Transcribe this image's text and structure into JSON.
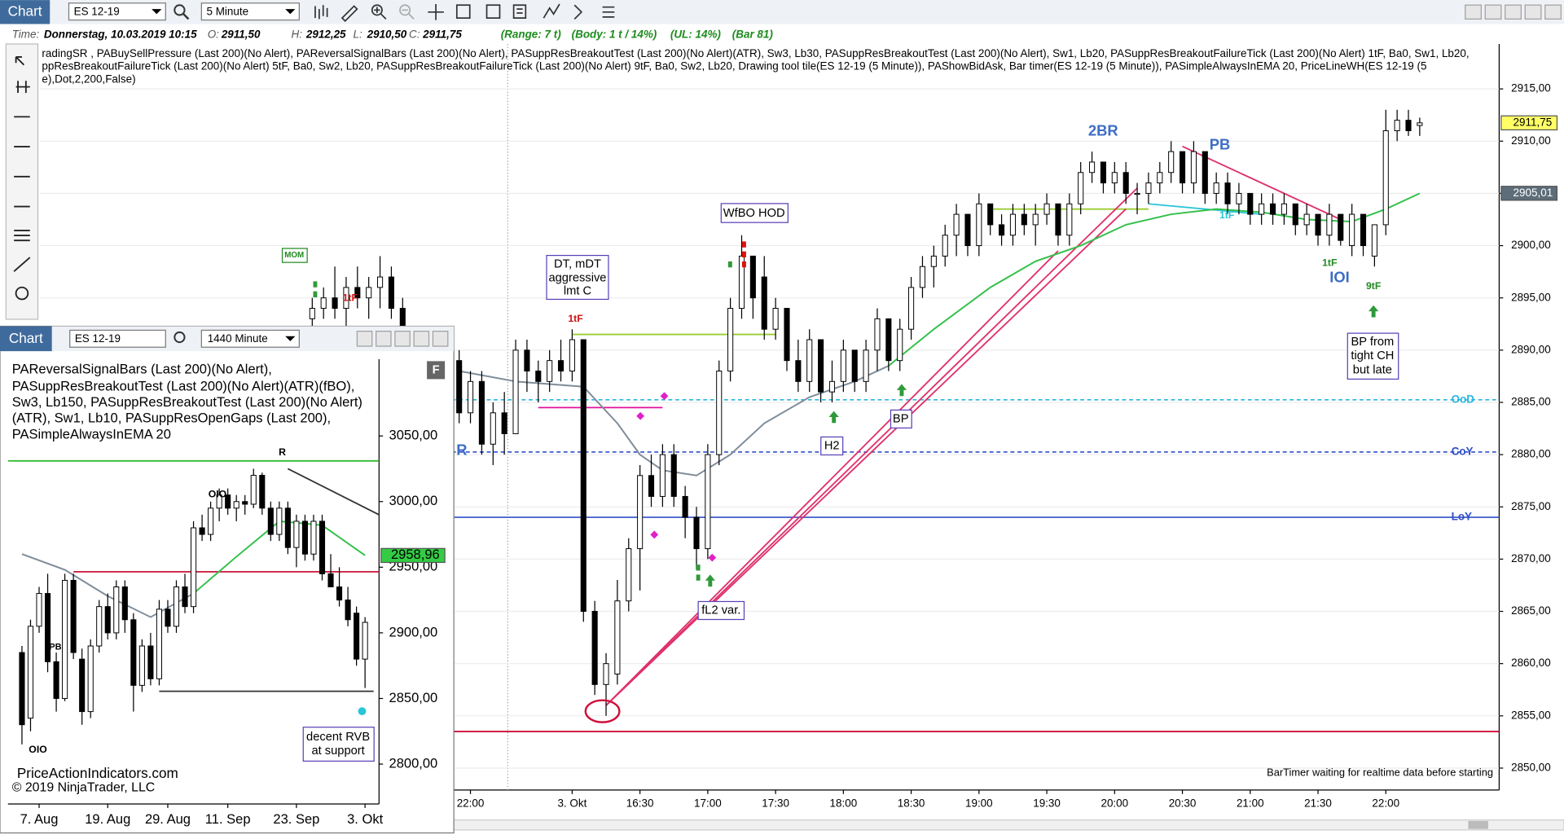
{
  "window": {
    "title": "Chart",
    "symbol": "ES 12-19",
    "interval": "5 Minute"
  },
  "status": {
    "time_label": "Time:",
    "time": "Donnerstag, 10.03.2019 10:15",
    "open_label": "O:",
    "open": "2911,50",
    "high_label": "H:",
    "high": "2912,25",
    "low_label": "L:",
    "low": "2910,50",
    "close_label": "C:",
    "close": "2911,75",
    "range": "(Range: 7 t)",
    "body": "(Body: 1 t / 14%)",
    "ul": "(UL: 14%)",
    "bar": "(Bar 81)"
  },
  "indicators": [
    "radingSR , PABuySellPressure (Last 200)(No Alert), PAReversalSignalBars (Last 200)(No Alert), PASuppResBreakoutTest (Last 200)(No Alert)(ATR),  Sw3,  Lb30, PASuppResBreakoutTest (Last 200)(No Alert),  Sw1,  Lb20, PASuppResBreakoutFailureTick (Last 200)(No Alert) 1tF,  Ba0,  Sw1,  Lb20,",
    "ppResBreakoutFailureTick (Last 200)(No Alert) 5tF,  Ba0,  Sw2,  Lb20, PASuppResBreakoutFailureTick (Last 200)(No Alert) 9tF,  Ba0,  Sw2,  Lb20, Drawing tool tile(ES 12-19 (5 Minute)), PAShowBidAsk, Bar timer(ES 12-19 (5 Minute)), PASimpleAlwaysInEMA    20, PriceLineWH(ES 12-19 (5",
    "e),Dot,2,200,False)"
  ],
  "annotations": [
    "DT, mDT",
    "aggressive",
    "lmt C",
    "WfBO HOD",
    "H2",
    "BP",
    "fL2 var.",
    "BP from",
    "tight CH",
    "but late",
    "2BR",
    "PB",
    "IOI",
    "1tF",
    "9tF",
    "1tF",
    "1tF",
    "MOM",
    "R",
    "1tF"
  ],
  "bar_timer": "BarTimer waiting for realtime data before starting",
  "inset": {
    "title": "Chart",
    "symbol": "ES 12-19",
    "interval": "1440 Minute",
    "button": "F",
    "indicators": [
      "PAReversalSignalBars (Last 200)(No Alert),",
      "PASuppResBreakoutTest (Last 200)(No Alert)(ATR)(fBO),",
      "Sw3,  Lb150, PASuppResBreakoutTest (Last 200)(No Alert)",
      "(ATR),  Sw1,  Lb10, PASuppResOpenGaps (Last 200),",
      "PASimpleAlwaysInEMA    20"
    ],
    "annotations": [
      "OIO",
      "R",
      "(PB",
      "OIO",
      "decent RVB",
      "at support"
    ],
    "footer": [
      "PriceActionIndicators.com",
      "© 2019 NinjaTrader, LLC"
    ]
  },
  "chart_data": [
    {
      "type": "candlestick",
      "up_color": "#ffffff",
      "down_color": "#000000",
      "open": [
        2893,
        2894,
        2895,
        2894,
        2896,
        2895,
        2896,
        2897,
        2894,
        2890,
        2889,
        2888,
        2889,
        2889,
        2884,
        2887,
        2881,
        2884,
        2882,
        2890,
        2888,
        2887,
        2889,
        2888,
        2891,
        2865,
        2858,
        2859,
        2866,
        2871,
        2878,
        2876,
        2880,
        2876,
        2874,
        2871,
        2880,
        2888,
        2894,
        2899,
        2897,
        2892,
        2894,
        2889,
        2887,
        2891,
        2886,
        2887,
        2890,
        2887,
        2890,
        2893,
        2889,
        2892,
        2896,
        2898,
        2899,
        2901,
        2903,
        2900,
        2904,
        2902,
        2901,
        2903,
        2902,
        2903,
        2904,
        2901,
        2904,
        2907,
        2908,
        2906,
        2907,
        2905,
        2905,
        2906,
        2907,
        2909,
        2906,
        2909,
        2905,
        2906,
        2904,
        2905,
        2903,
        2904,
        2903,
        2904,
        2902,
        2903,
        2901,
        2903,
        2900,
        2903,
        2899,
        2902,
        2911,
        2912,
        2911.5
      ],
      "high": [
        2895,
        2896,
        2898,
        2897,
        2898,
        2897,
        2899,
        2898,
        2895,
        2892,
        2891,
        2890,
        2890,
        2890,
        2888,
        2888,
        2885,
        2886,
        2891,
        2891,
        2889,
        2890,
        2891,
        2892,
        2891,
        2866,
        2861,
        2868,
        2872,
        2879,
        2880,
        2881,
        2881,
        2877,
        2875,
        2881,
        2889,
        2895,
        2901,
        2899,
        2899,
        2895,
        2894,
        2891,
        2892,
        2891,
        2889,
        2891,
        2890,
        2891,
        2894,
        2893,
        2893,
        2897,
        2899,
        2900,
        2902,
        2904,
        2903,
        2905,
        2904,
        2903,
        2904,
        2904,
        2904,
        2905,
        2904,
        2905,
        2908,
        2909,
        2908,
        2908,
        2908,
        2906,
        2907,
        2908,
        2910,
        2909,
        2910,
        2909,
        2907,
        2907,
        2906,
        2905,
        2905,
        2905,
        2905,
        2904,
        2904,
        2903,
        2904,
        2903,
        2904,
        2903,
        2902,
        2913,
        2913,
        2913,
        2912.25
      ],
      "low": [
        2891,
        2893,
        2893,
        2892,
        2894,
        2893,
        2894,
        2893,
        2889,
        2887,
        2886,
        2885,
        2884,
        2883,
        2883,
        2880,
        2879,
        2880,
        2882,
        2886,
        2885,
        2886,
        2887,
        2887,
        2864,
        2857,
        2855,
        2858,
        2865,
        2867,
        2875,
        2875,
        2875,
        2872,
        2869,
        2870,
        2879,
        2887,
        2893,
        2893,
        2891,
        2891,
        2888,
        2886,
        2886,
        2885,
        2885,
        2886,
        2886,
        2886,
        2888,
        2888,
        2888,
        2891,
        2895,
        2896,
        2898,
        2899,
        2899,
        2899,
        2901,
        2900,
        2900,
        2901,
        2900,
        2902,
        2900,
        2900,
        2903,
        2906,
        2905,
        2905,
        2904,
        2903,
        2904,
        2905,
        2906,
        2905,
        2905,
        2904,
        2904,
        2903,
        2903,
        2902,
        2902,
        2902,
        2902,
        2901,
        2901,
        2900,
        2900,
        2900,
        2899,
        2899,
        2898,
        2901,
        2910,
        2910.5,
        2910.5
      ],
      "close": [
        2894,
        2895,
        2894,
        2896,
        2895,
        2896,
        2897,
        2894,
        2890,
        2889,
        2888,
        2889,
        2885,
        2884,
        2887,
        2881,
        2884,
        2882,
        2890,
        2888,
        2887,
        2889,
        2888,
        2891,
        2865,
        2858,
        2860,
        2866,
        2871,
        2878,
        2876,
        2880,
        2876,
        2874,
        2871,
        2880,
        2888,
        2894,
        2899,
        2895,
        2892,
        2894,
        2889,
        2887,
        2891,
        2886,
        2887,
        2890,
        2887,
        2890,
        2893,
        2889,
        2892,
        2896,
        2898,
        2899,
        2901,
        2903,
        2900,
        2904,
        2902,
        2901,
        2903,
        2902,
        2903,
        2904,
        2901,
        2904,
        2907,
        2908,
        2906,
        2907,
        2905,
        2905,
        2906,
        2907,
        2909,
        2906,
        2909,
        2905,
        2906,
        2904,
        2905,
        2903,
        2904,
        2903,
        2904,
        2902,
        2903,
        2901,
        2903,
        2900.5,
        2903,
        2900,
        2902,
        2911,
        2912,
        2911,
        2911.75
      ],
      "xlim": [
        -24.1,
        105.03
      ],
      "xticks": [
        {
          "value": 14,
          "label": "22:00"
        },
        {
          "value": 23,
          "label": "3. Okt"
        },
        {
          "value": 29,
          "label": "16:30"
        },
        {
          "value": 35,
          "label": "17:00"
        },
        {
          "value": 41,
          "label": "17:30"
        },
        {
          "value": 47,
          "label": "18:00"
        },
        {
          "value": 53,
          "label": "18:30"
        },
        {
          "value": 59,
          "label": "19:00"
        },
        {
          "value": 65,
          "label": "19:30"
        },
        {
          "value": 71,
          "label": "20:00"
        },
        {
          "value": 77,
          "label": "20:30"
        },
        {
          "value": 83,
          "label": "21:00"
        },
        {
          "value": 89,
          "label": "21:30"
        },
        {
          "value": 95,
          "label": "22:00"
        }
      ],
      "ylim": [
        2847.9,
        2919.3
      ],
      "yticks": [
        {
          "value": 2850,
          "label": "2850,00"
        },
        {
          "value": 2855,
          "label": "2855,00"
        },
        {
          "value": 2860,
          "label": "2860,00"
        },
        {
          "value": 2865,
          "label": "2865,00"
        },
        {
          "value": 2870,
          "label": "2870,00"
        },
        {
          "value": 2875,
          "label": "2875,00"
        },
        {
          "value": 2880,
          "label": "2880,00"
        },
        {
          "value": 2885,
          "label": "2885,00"
        },
        {
          "value": 2890,
          "label": "2890,00"
        },
        {
          "value": 2895,
          "label": "2895,00"
        },
        {
          "value": 2900,
          "label": "2900,00"
        },
        {
          "value": 2905,
          "label": "2905,00"
        },
        {
          "value": 2910,
          "label": "2910,00"
        },
        {
          "value": 2915,
          "label": "2915,00"
        }
      ],
      "grid": true,
      "lines": [
        {
          "color": "#7f8c99",
          "x": [
            13,
            18,
            24,
            27,
            29,
            31,
            34,
            37,
            40,
            44,
            48,
            51
          ],
          "values": [
            2888,
            2887,
            2886.5,
            2883,
            2880,
            2878.5,
            2878,
            2880,
            2883,
            2885.5,
            2887,
            2888.5
          ]
        },
        {
          "color": "#33c04a",
          "x": [
            51,
            55,
            60,
            64,
            68,
            72,
            76,
            80,
            84,
            88,
            92,
            95,
            98
          ],
          "values": [
            2888.5,
            2892,
            2896,
            2898.5,
            2900,
            2902,
            2903,
            2903.5,
            2903.2,
            2902.5,
            2902.3,
            2903.5,
            2905
          ]
        }
      ],
      "segments": [
        {
          "color": "#9acd32",
          "x": [
            23,
            41
          ],
          "values": [
            2891.5,
            2891.5
          ]
        },
        {
          "color": "#9acd32",
          "x": [
            60,
            74
          ],
          "values": [
            2903.5,
            2903.5
          ]
        },
        {
          "color": "#e0109a",
          "x": [
            20,
            31
          ],
          "values": [
            2884.5,
            2884.5
          ]
        },
        {
          "color": "#e0306a",
          "x": [
            26,
            73
          ],
          "values": [
            2856,
            2905.5
          ]
        },
        {
          "color": "#e0306a",
          "x": [
            26,
            72
          ],
          "values": [
            2856,
            2903.5
          ]
        },
        {
          "color": "#e0306a",
          "x": [
            26,
            66
          ],
          "values": [
            2856,
            2899.5
          ]
        },
        {
          "color": "#e0306a",
          "x": [
            77,
            91
          ],
          "values": [
            2909.5,
            2902.5
          ]
        },
        {
          "color": "#29c5d8",
          "x": [
            74,
            84
          ],
          "values": [
            2904,
            2903
          ]
        }
      ],
      "levels": [
        {
          "name": "OoD",
          "value": 2885.25,
          "color": "#29b6e0",
          "dash": true
        },
        {
          "name": "CoY",
          "value": 2880.25,
          "color": "#3050c8",
          "dash": true
        },
        {
          "name": "LoY",
          "value": 2874,
          "color": "#3050c8",
          "dash": false
        }
      ],
      "support_line": {
        "value": 2853.5,
        "color": "#d0103a"
      },
      "price_tags": [
        {
          "value": 2911.75,
          "label": "2911,75",
          "color": "#ffff66"
        },
        {
          "value": 2905.01,
          "label": "2905,01",
          "color": "#5d6d7a"
        }
      ]
    },
    {
      "type": "candlestick",
      "up_color": "#ffffff",
      "down_color": "#000000",
      "open": [
        2885,
        2835,
        2905,
        2930,
        2878,
        2850,
        2940,
        2880,
        2840,
        2890,
        2920,
        2900,
        2935,
        2910,
        2860,
        2890,
        2865,
        2918,
        2905,
        2935,
        2920,
        2980,
        2975,
        2995,
        3005,
        2995,
        3000,
        2998,
        3020,
        2995,
        2975,
        2995,
        2965,
        2985,
        2960,
        2985,
        2945,
        2935,
        2925,
        2915,
        2880
      ],
      "high": [
        2890,
        2910,
        2935,
        2945,
        2885,
        2945,
        2945,
        2888,
        2895,
        2925,
        2930,
        2940,
        2940,
        2915,
        2895,
        2900,
        2925,
        2925,
        2940,
        2945,
        2985,
        2990,
        3000,
        3010,
        3010,
        3005,
        3005,
        3025,
        3022,
        3000,
        3000,
        3000,
        2990,
        2990,
        2990,
        2990,
        2960,
        2950,
        2935,
        2920,
        2912
      ],
      "low": [
        2815,
        2825,
        2900,
        2870,
        2840,
        2848,
        2880,
        2830,
        2835,
        2885,
        2895,
        2895,
        2900,
        2840,
        2855,
        2860,
        2860,
        2900,
        2900,
        2915,
        2915,
        2970,
        2970,
        2985,
        2990,
        2985,
        2990,
        2995,
        2990,
        2970,
        2970,
        2960,
        2950,
        2955,
        2955,
        2940,
        2935,
        2920,
        2905,
        2875,
        2858
      ],
      "close": [
        2830,
        2905,
        2930,
        2878,
        2850,
        2940,
        2885,
        2840,
        2890,
        2920,
        2900,
        2935,
        2910,
        2860,
        2890,
        2865,
        2918,
        2905,
        2935,
        2920,
        2980,
        2975,
        2995,
        3005,
        2995,
        3000,
        2998,
        3020,
        2995,
        2975,
        2995,
        2965,
        2985,
        2960,
        2985,
        2945,
        2935,
        2925,
        2910,
        2880,
        2908
      ],
      "xlim": [
        -1.63,
        41.63
      ],
      "xticks": [
        {
          "value": 2,
          "label": "7. Aug"
        },
        {
          "value": 10,
          "label": "19. Aug"
        },
        {
          "value": 17,
          "label": "29. Aug"
        },
        {
          "value": 24,
          "label": "11. Sep"
        },
        {
          "value": 32,
          "label": "23. Sep"
        },
        {
          "value": 40,
          "label": "3. Okt"
        }
      ],
      "ylim": [
        2769.6,
        3108.5
      ],
      "yticks": [
        {
          "value": 2800,
          "label": "2800,00"
        },
        {
          "value": 2850,
          "label": "2850,00"
        },
        {
          "value": 2900,
          "label": "2900,00"
        },
        {
          "value": 2950,
          "label": "2950,00"
        },
        {
          "value": 3000,
          "label": "3000,00"
        },
        {
          "value": 3050,
          "label": "3050,00"
        }
      ],
      "grid": false,
      "lines": [
        {
          "color": "#7f8c99",
          "x": [
            0,
            5,
            10,
            15,
            20
          ],
          "values": [
            2960,
            2948,
            2928,
            2912,
            2930
          ]
        },
        {
          "color": "#33c04a",
          "x": [
            20,
            25,
            30,
            35,
            40
          ],
          "values": [
            2930,
            2958,
            2985,
            2982,
            2959
          ]
        }
      ],
      "segments": [
        {
          "color": "#33bb33",
          "x": [
            -1.63,
            41.63
          ],
          "values": [
            3031,
            3031
          ]
        },
        {
          "color": "#cc2244",
          "x": [
            6,
            41.63
          ],
          "values": [
            2946.5,
            2946.5
          ]
        },
        {
          "color": "#333333",
          "x": [
            16,
            41
          ],
          "values": [
            2855.5,
            2855.5
          ]
        },
        {
          "color": "#333333",
          "x": [
            31,
            41.63
          ],
          "values": [
            3025,
            2990
          ]
        }
      ],
      "levels": [],
      "price_tags": [
        {
          "value": 2958.96,
          "label": "2958,96",
          "color": "#33cc44"
        }
      ]
    }
  ]
}
